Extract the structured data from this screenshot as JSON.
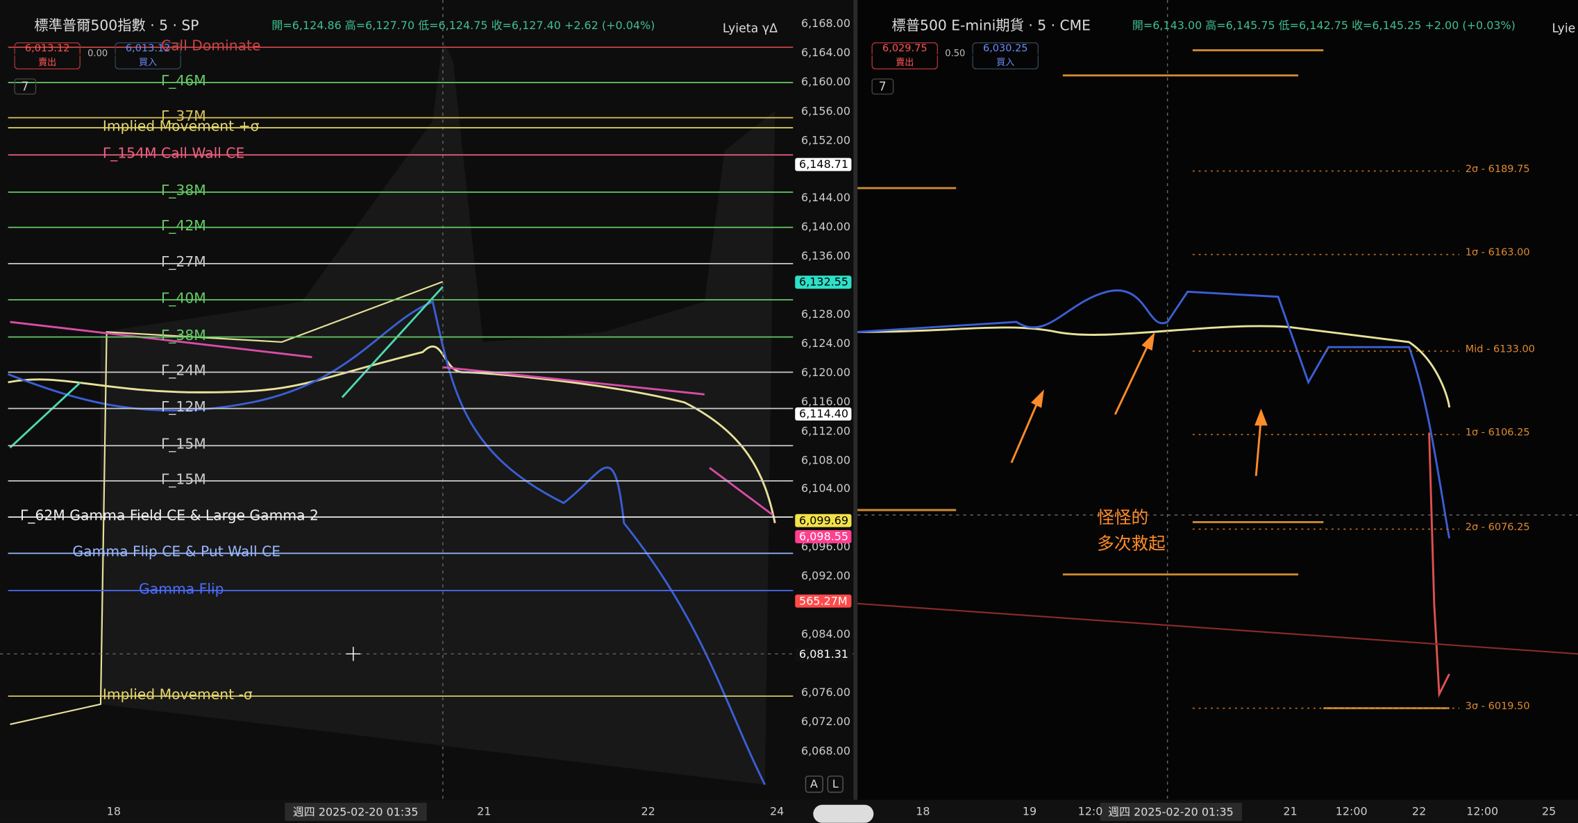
{
  "left": {
    "symbol": "標準普爾500指數 · 5 · SP",
    "ohlc": "開=6,124.86 高=6,127.70 低=6,124.75 收=6,127.40 +2.62 (+0.04%)",
    "sell_price": "6,013.12",
    "sell_label": "賣出",
    "spread": "0.00",
    "buy_price": "6,013.12",
    "buy_label": "買入",
    "collapse": "7",
    "indicator": "Lyieta γΔ",
    "levels": [
      "Call Dominate",
      "Γ_46M",
      "Γ_37M",
      "Implied Movement +σ",
      "Γ_154M  Call Wall CE",
      "Γ_38M",
      "Γ_42M",
      "Γ_27M",
      "Γ_40M",
      "Γ_38M",
      "Γ_24M",
      "Γ_12M",
      "Γ_15M",
      "Γ_15M",
      "Γ_62M  Gamma Field CE & Large Gamma 2",
      "Gamma Flip CE & Put Wall CE",
      "Gamma Flip",
      "Implied Movement -σ"
    ],
    "price_axis": [
      "6,168.00",
      "6,164.00",
      "6,160.00",
      "6,156.00",
      "6,152.00",
      "6,144.00",
      "6,140.00",
      "6,136.00",
      "6,128.00",
      "6,124.00",
      "6,120.00",
      "6,116.00",
      "6,112.00",
      "6,108.00",
      "6,104.00",
      "6,096.00",
      "6,092.00",
      "6,084.00",
      "6,076.00",
      "6,072.00",
      "6,068.00"
    ],
    "price_tags": [
      "6,148.71",
      "6,132.55",
      "6,114.40",
      "6,099.69",
      "6,098.55",
      "565.27M",
      "6,081.31"
    ],
    "time_axis": [
      "18",
      "21",
      "22",
      "24"
    ],
    "cursor_time": "週四 2025-02-20 01:35",
    "buttons": [
      "A",
      "L"
    ]
  },
  "right": {
    "symbol": "標普500 E-mini期貨 · 5 · CME",
    "ohlc": "開=6,143.00 高=6,145.75 低=6,142.75 收=6,145.25 +2.00 (+0.03%)",
    "sell_price": "6,029.75",
    "sell_label": "賣出",
    "spread": "0.50",
    "buy_price": "6,030.25",
    "buy_label": "買入",
    "collapse": "7",
    "indicator": "Lyie",
    "levels": [
      "2σ - 6189.75",
      "1σ - 6163.00",
      "Mid - 6133.00",
      "1σ - 6106.25",
      "2σ - 6076.25",
      "3σ - 6019.50"
    ],
    "annotation": [
      "怪怪的",
      "多次救起"
    ],
    "time_axis": [
      "18",
      "19",
      "12:0",
      "21",
      "12:00",
      "22",
      "12:00",
      "25"
    ],
    "cursor_time": "週四 2025-02-20 01:35"
  }
}
